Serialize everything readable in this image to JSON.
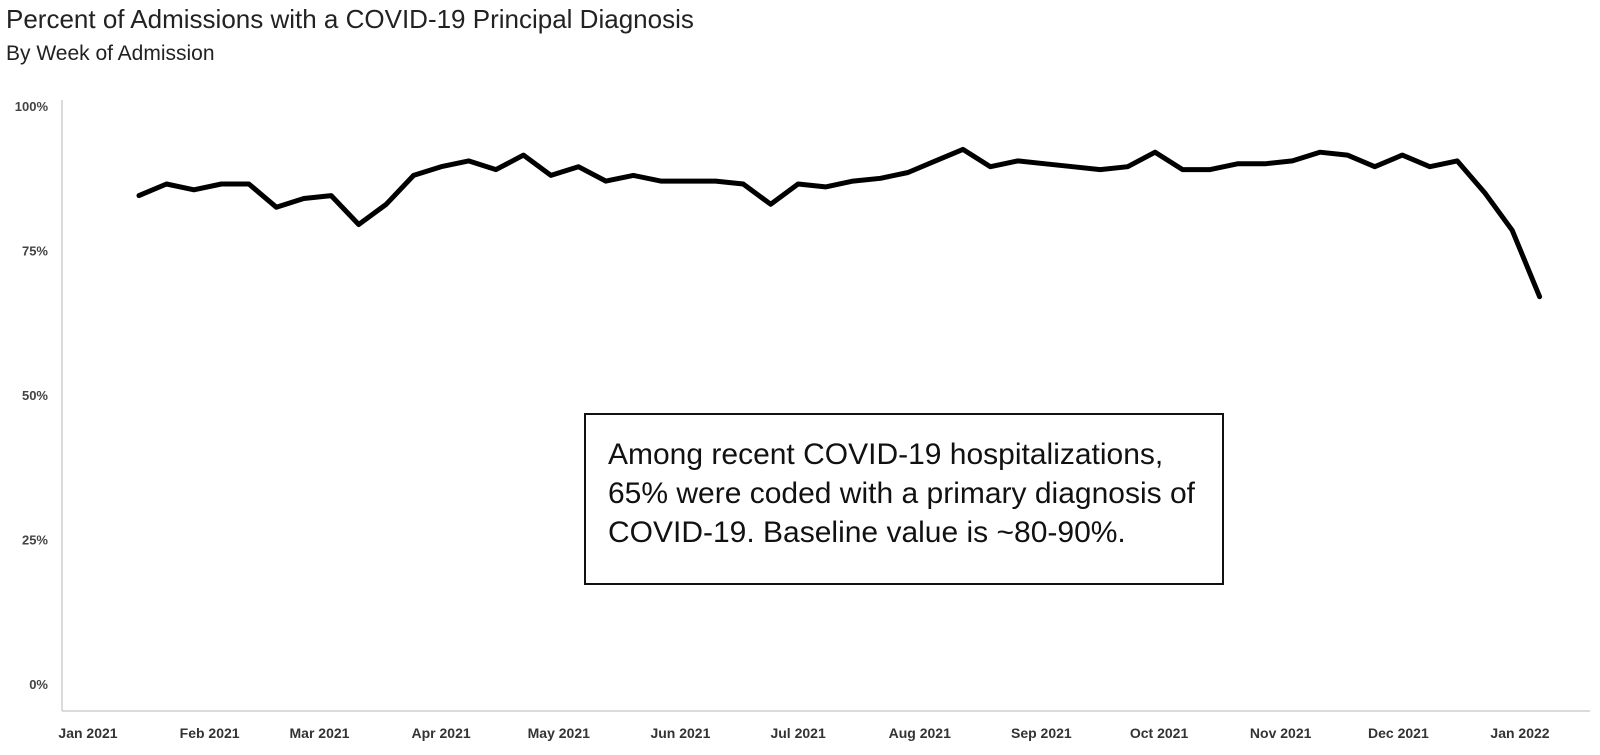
{
  "chart_data": {
    "type": "line",
    "title": "Percent of Admissions with a COVID-19 Principal Diagnosis",
    "subtitle": "By Week of Admission",
    "xlabel": "",
    "ylabel": "",
    "ylim": [
      0,
      100
    ],
    "y_ticks": [
      {
        "value": 0,
        "label": "0%"
      },
      {
        "value": 25,
        "label": "25%"
      },
      {
        "value": 50,
        "label": "50%"
      },
      {
        "value": 75,
        "label": "75%"
      },
      {
        "value": 100,
        "label": "100%"
      }
    ],
    "x_ticks": [
      {
        "date": "2021-01-01",
        "label": "Jan 2021"
      },
      {
        "date": "2021-02-01",
        "label": "Feb 2021"
      },
      {
        "date": "2021-03-01",
        "label": "Mar 2021"
      },
      {
        "date": "2021-04-01",
        "label": "Apr 2021"
      },
      {
        "date": "2021-05-01",
        "label": "May 2021"
      },
      {
        "date": "2021-06-01",
        "label": "Jun 2021"
      },
      {
        "date": "2021-07-01",
        "label": "Jul 2021"
      },
      {
        "date": "2021-08-01",
        "label": "Aug 2021"
      },
      {
        "date": "2021-09-01",
        "label": "Sep 2021"
      },
      {
        "date": "2021-10-01",
        "label": "Oct 2021"
      },
      {
        "date": "2021-11-01",
        "label": "Nov 2021"
      },
      {
        "date": "2021-12-01",
        "label": "Dec 2021"
      },
      {
        "date": "2022-01-01",
        "label": "Jan 2022"
      }
    ],
    "grid": false,
    "series": [
      {
        "color": "#000000",
        "x": [
          "2021-01-14",
          "2021-01-21",
          "2021-01-28",
          "2021-02-04",
          "2021-02-11",
          "2021-02-18",
          "2021-02-25",
          "2021-03-04",
          "2021-03-11",
          "2021-03-18",
          "2021-03-25",
          "2021-04-01",
          "2021-04-08",
          "2021-04-15",
          "2021-04-22",
          "2021-04-29",
          "2021-05-06",
          "2021-05-13",
          "2021-05-20",
          "2021-05-27",
          "2021-06-03",
          "2021-06-10",
          "2021-06-17",
          "2021-06-24",
          "2021-07-01",
          "2021-07-08",
          "2021-07-15",
          "2021-07-22",
          "2021-07-29",
          "2021-08-05",
          "2021-08-12",
          "2021-08-19",
          "2021-08-26",
          "2021-09-02",
          "2021-09-09",
          "2021-09-16",
          "2021-09-23",
          "2021-09-30",
          "2021-10-07",
          "2021-10-14",
          "2021-10-21",
          "2021-10-28",
          "2021-11-04",
          "2021-11-11",
          "2021-11-18",
          "2021-11-25",
          "2021-12-02",
          "2021-12-09",
          "2021-12-16",
          "2021-12-23",
          "2021-12-30",
          "2022-01-06"
        ],
        "values": [
          84.5,
          86.5,
          85.5,
          86.5,
          86.5,
          82.5,
          84,
          84.5,
          79.5,
          83,
          88,
          89.5,
          90.5,
          89,
          91.5,
          88,
          89.5,
          87,
          88,
          87,
          87,
          87,
          86.5,
          83,
          86.5,
          86,
          87,
          87.5,
          88.5,
          90.5,
          92.5,
          89.5,
          90.5,
          90,
          89.5,
          89,
          89.5,
          92,
          89,
          89,
          90,
          90,
          90.5,
          92,
          91.5,
          89.5,
          91.5,
          89.5,
          90.5,
          85,
          78.5,
          67
        ]
      }
    ]
  },
  "annotation": {
    "text": "Among recent COVID-19 hospitalizations, 65% were coded with a primary diagnosis of COVID-19. Baseline value is ~80-90%."
  }
}
